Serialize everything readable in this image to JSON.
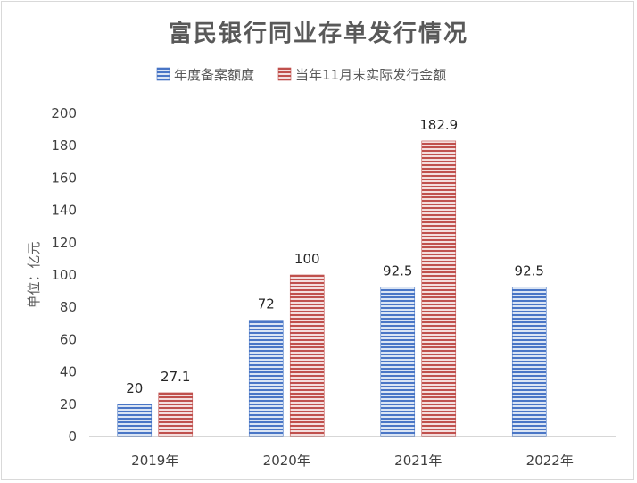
{
  "chart_data": {
    "type": "bar",
    "title": "富民银行同业存单发行情况",
    "ylabel": "单位：亿元",
    "xlabel": "",
    "categories": [
      "2019年",
      "2020年",
      "2021年",
      "2022年"
    ],
    "series": [
      {
        "name": "年度备案额度",
        "values": [
          20,
          72,
          92.5,
          92.5
        ],
        "color": "#4472c4",
        "pattern": "horizontal-stripes"
      },
      {
        "name": "当年11月末实际发行金额",
        "values": [
          27.1,
          100,
          182.9,
          null
        ],
        "color": "#c0504d",
        "pattern": "horizontal-stripes"
      }
    ],
    "data_labels": [
      [
        "20",
        "27.1"
      ],
      [
        "72",
        "100"
      ],
      [
        "92.5",
        "182.9"
      ],
      [
        "92.5",
        ""
      ]
    ],
    "ylim": [
      0,
      200
    ],
    "yticks": [
      0,
      20,
      40,
      60,
      80,
      100,
      120,
      140,
      160,
      180,
      200
    ],
    "grid": false,
    "legend_position": "top-center"
  }
}
